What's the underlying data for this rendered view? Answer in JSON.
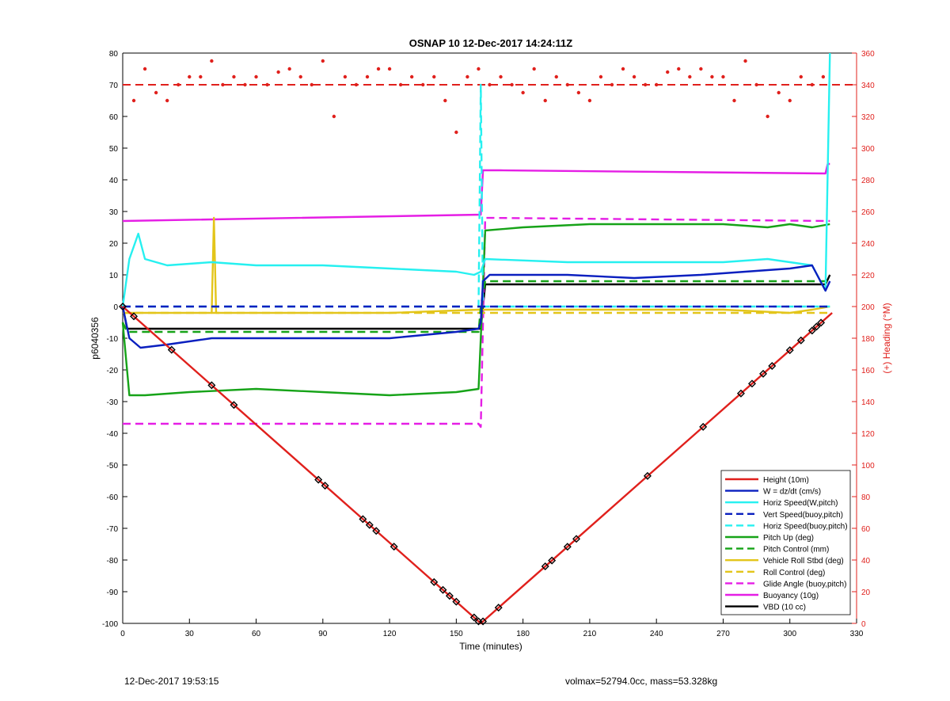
{
  "chart_data": {
    "type": "line",
    "title": "OSNAP 10 12-Dec-2017 14:24:11Z",
    "xlabel": "Time (minutes)",
    "ylabel_left": "p6040356",
    "ylabel_right": "(+) Heading (°M)",
    "xlim": [
      0,
      330
    ],
    "ylim_left": [
      -100,
      80
    ],
    "ylim_right": [
      0,
      360
    ],
    "xticks": [
      0,
      30,
      60,
      90,
      120,
      150,
      180,
      210,
      240,
      270,
      300,
      330
    ],
    "yticks_left": [
      -100,
      -90,
      -80,
      -70,
      -60,
      -50,
      -40,
      -30,
      -20,
      -10,
      0,
      10,
      20,
      30,
      40,
      50,
      60,
      70,
      80
    ],
    "yticks_right": [
      0,
      20,
      40,
      60,
      80,
      100,
      120,
      140,
      160,
      180,
      200,
      220,
      240,
      260,
      280,
      300,
      320,
      340,
      360
    ],
    "grid": false,
    "legend_position": "bottom-right",
    "heading_target": 340,
    "series": [
      {
        "name": "Height (10m)",
        "color": "#e0201c",
        "dash": "solid",
        "x": [
          0,
          161,
          319
        ],
        "y": [
          0,
          -100,
          -2
        ]
      },
      {
        "name": "W = dz/dt (cm/s)",
        "color": "#0a1fbf",
        "dash": "solid",
        "x": [
          0,
          3,
          8,
          20,
          40,
          60,
          90,
          120,
          150,
          160,
          161,
          162,
          165,
          200,
          230,
          260,
          280,
          300,
          310,
          316,
          318
        ],
        "y": [
          0,
          -10,
          -13,
          -12,
          -10,
          -10,
          -10,
          -10,
          -8,
          -7,
          -5,
          8,
          10,
          10,
          9,
          10,
          11,
          12,
          13,
          5,
          8
        ]
      },
      {
        "name": "Horiz Speed(W,pitch)",
        "color": "#26f0f0",
        "dash": "solid",
        "x": [
          0,
          3,
          7,
          10,
          20,
          40,
          60,
          90,
          120,
          150,
          158,
          161,
          163,
          200,
          240,
          270,
          290,
          300,
          310,
          316,
          318
        ],
        "y": [
          0,
          15,
          23,
          15,
          13,
          14,
          13,
          13,
          12,
          11,
          10,
          11,
          15,
          14,
          14,
          14,
          15,
          14,
          13,
          5,
          80
        ]
      },
      {
        "name": "Vert Speed(buoy,pitch)",
        "color": "#0a1fbf",
        "dash": "dashed",
        "x": [
          0,
          318
        ],
        "y": [
          0,
          0
        ]
      },
      {
        "name": "Horiz Speed(buoy,pitch)",
        "color": "#26f0f0",
        "dash": "dashed",
        "x": [
          0,
          160,
          161,
          162,
          318
        ],
        "y": [
          0,
          0,
          70,
          0,
          0
        ]
      },
      {
        "name": "Pitch Up (deg)",
        "color": "#16a318",
        "dash": "solid",
        "x": [
          0,
          3,
          10,
          30,
          60,
          90,
          120,
          150,
          160,
          161,
          163,
          180,
          210,
          240,
          270,
          290,
          300,
          310,
          318
        ],
        "y": [
          -5,
          -28,
          -28,
          -27,
          -26,
          -27,
          -28,
          -27,
          -26,
          -10,
          24,
          25,
          26,
          26,
          26,
          25,
          26,
          25,
          26
        ]
      },
      {
        "name": "Pitch Control (mm)",
        "color": "#16a318",
        "dash": "dashed",
        "x": [
          0,
          2,
          160,
          161,
          163,
          318
        ],
        "y": [
          -5,
          -8,
          -8,
          0,
          8,
          8
        ]
      },
      {
        "name": "Vehicle Roll Stbd (deg)",
        "color": "#e3c51a",
        "dash": "solid",
        "x": [
          0,
          40,
          41,
          42,
          60,
          120,
          160,
          162,
          170,
          200,
          240,
          270,
          300,
          310,
          318
        ],
        "y": [
          -2,
          -2,
          28,
          -2,
          -2,
          -2,
          -1,
          -1,
          -1,
          -1,
          -1,
          -1,
          -2,
          -1,
          0
        ]
      },
      {
        "name": "Roll Control (deg)",
        "color": "#e3c51a",
        "dash": "dashed",
        "x": [
          0,
          318
        ],
        "y": [
          -2,
          -2
        ]
      },
      {
        "name": "Glide Angle (buoy,pitch)",
        "color": "#e51ee5",
        "dash": "dashed",
        "x": [
          0,
          160,
          161,
          163,
          318
        ],
        "y": [
          -37,
          -37,
          -38,
          28,
          27
        ]
      },
      {
        "name": "Buoyancy (10g)",
        "color": "#e51ee5",
        "dash": "solid",
        "x": [
          0,
          161,
          162,
          170,
          316,
          317,
          318
        ],
        "y": [
          27,
          29,
          43,
          43,
          42,
          45,
          45
        ]
      },
      {
        "name": "VBD (10 cc)",
        "color": "#000000",
        "dash": "solid",
        "x": [
          0,
          2,
          161,
          163,
          316,
          318
        ],
        "y": [
          0,
          -7,
          -7,
          7,
          7,
          10
        ]
      }
    ],
    "heading_series": {
      "name": "Heading",
      "color": "#e0201c",
      "x": [
        0,
        5,
        10,
        15,
        20,
        25,
        30,
        35,
        40,
        45,
        50,
        55,
        60,
        65,
        70,
        75,
        80,
        85,
        90,
        95,
        100,
        105,
        110,
        115,
        120,
        125,
        130,
        135,
        140,
        145,
        150,
        155,
        160,
        165,
        170,
        175,
        180,
        185,
        190,
        195,
        200,
        205,
        210,
        215,
        220,
        225,
        230,
        235,
        240,
        245,
        250,
        255,
        260,
        265,
        270,
        275,
        280,
        285,
        290,
        295,
        300,
        305,
        310,
        315
      ],
      "y": [
        200,
        330,
        350,
        335,
        330,
        340,
        345,
        345,
        355,
        340,
        345,
        340,
        345,
        340,
        348,
        350,
        345,
        340,
        355,
        320,
        345,
        340,
        345,
        350,
        350,
        340,
        345,
        340,
        345,
        330,
        310,
        345,
        350,
        340,
        345,
        340,
        335,
        350,
        330,
        345,
        340,
        335,
        330,
        345,
        340,
        350,
        345,
        340,
        340,
        348,
        350,
        345,
        350,
        345,
        345,
        330,
        355,
        340,
        320,
        335,
        330,
        345,
        340,
        345
      ]
    }
  },
  "footer": {
    "left": "12-Dec-2017 19:53:15",
    "right": "volmax=52794.0cc, mass=53.328kg"
  }
}
